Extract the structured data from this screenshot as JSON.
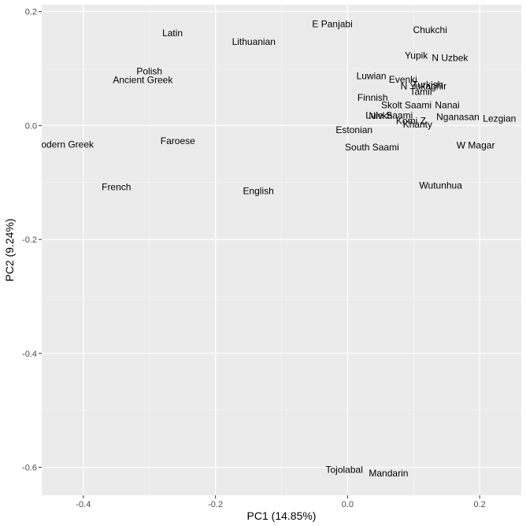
{
  "chart_data": {
    "type": "scatter",
    "xlabel": "PC1 (14.85%)",
    "ylabel": "PC2 (9.24%)",
    "xlim": [
      -0.463,
      0.263
    ],
    "ylim": [
      -0.649,
      0.212
    ],
    "xticks": [
      -0.4,
      -0.2,
      0.0,
      0.2
    ],
    "xtick_labels": [
      "-0.4",
      "-0.2",
      "0.0",
      "0.2"
    ],
    "yticks": [
      -0.6,
      -0.4,
      -0.2,
      0.0,
      0.2
    ],
    "ytick_labels": [
      "-0.6",
      "-0.4",
      "-0.2",
      "0.0",
      "0.2"
    ],
    "grid": true,
    "background": "#ebebeb",
    "points": [
      {
        "label": "Modern Greek",
        "x": -0.43,
        "y": -0.033
      },
      {
        "label": "French",
        "x": -0.35,
        "y": -0.108
      },
      {
        "label": "Polish",
        "x": -0.3,
        "y": 0.095
      },
      {
        "label": "Ancient Greek",
        "x": -0.31,
        "y": 0.08
      },
      {
        "label": "Latin",
        "x": -0.265,
        "y": 0.162
      },
      {
        "label": "Faroese",
        "x": -0.257,
        "y": -0.027
      },
      {
        "label": "Lithuanian",
        "x": -0.142,
        "y": 0.147
      },
      {
        "label": "English",
        "x": -0.135,
        "y": -0.115
      },
      {
        "label": "E Panjabi",
        "x": -0.023,
        "y": 0.178
      },
      {
        "label": "Tojolabal",
        "x": -0.005,
        "y": -0.604
      },
      {
        "label": "Estonian",
        "x": 0.01,
        "y": -0.008
      },
      {
        "label": "Luwian",
        "x": 0.036,
        "y": 0.087
      },
      {
        "label": "Finnish",
        "x": 0.038,
        "y": 0.049
      },
      {
        "label": "South Saami",
        "x": 0.037,
        "y": -0.038
      },
      {
        "label": "Mandarin",
        "x": 0.062,
        "y": -0.61
      },
      {
        "label": "Nivkh",
        "x": 0.05,
        "y": 0.017
      },
      {
        "label": "Lule Saami",
        "x": 0.063,
        "y": 0.018
      },
      {
        "label": "Evenki",
        "x": 0.084,
        "y": 0.081
      },
      {
        "label": "Skolt Saami",
        "x": 0.089,
        "y": 0.036
      },
      {
        "label": "Komi Z",
        "x": 0.096,
        "y": 0.008
      },
      {
        "label": "Khanty",
        "x": 0.106,
        "y": 0.002
      },
      {
        "label": "Yupik",
        "x": 0.104,
        "y": 0.123
      },
      {
        "label": "N Yukaghir",
        "x": 0.115,
        "y": 0.069
      },
      {
        "label": "Turkish",
        "x": 0.121,
        "y": 0.072
      },
      {
        "label": "Tamil",
        "x": 0.111,
        "y": 0.059
      },
      {
        "label": "Chukchi",
        "x": 0.125,
        "y": 0.168
      },
      {
        "label": "N Uzbek",
        "x": 0.155,
        "y": 0.119
      },
      {
        "label": "Nanai",
        "x": 0.151,
        "y": 0.036
      },
      {
        "label": "Nganasan",
        "x": 0.167,
        "y": 0.015
      },
      {
        "label": "Wutunhua",
        "x": 0.141,
        "y": -0.105
      },
      {
        "label": "W Magar",
        "x": 0.194,
        "y": -0.035
      },
      {
        "label": "Lezgian",
        "x": 0.23,
        "y": 0.012
      }
    ]
  }
}
